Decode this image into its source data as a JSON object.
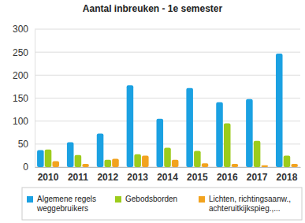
{
  "chart_data": {
    "type": "bar",
    "title": "Aantal inbreuken - 1e semester",
    "categories": [
      "2010",
      "2011",
      "2012",
      "2013",
      "2014",
      "2015",
      "2016",
      "2017",
      "2018"
    ],
    "series": [
      {
        "name": "Algemene regels weggebruikers",
        "color": "#1ba1e2",
        "values": [
          37,
          54,
          73,
          178,
          105,
          172,
          141,
          148,
          247
        ]
      },
      {
        "name": "Gebodsborden",
        "color": "#9ccc1c",
        "values": [
          38,
          26,
          16,
          28,
          42,
          35,
          95,
          57,
          25
        ]
      },
      {
        "name": "Lichten, richtingsaanw., achteruitkijkspieg.,...",
        "color": "#f2a31e",
        "values": [
          13,
          7,
          18,
          25,
          16,
          8,
          7,
          4,
          7
        ]
      }
    ],
    "ylim": [
      0,
      300
    ],
    "yticks": [
      0,
      50,
      100,
      150,
      200,
      250,
      300
    ],
    "grid": true,
    "legend": "bottom"
  }
}
